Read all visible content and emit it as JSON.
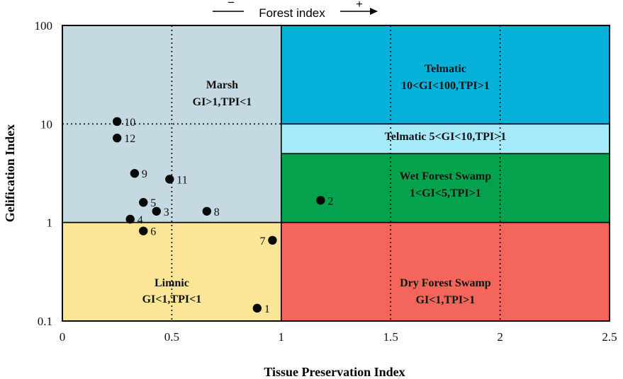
{
  "chart_data": {
    "type": "scatter",
    "title": "",
    "top_label": "Forest index",
    "top_minus": "−",
    "top_plus": "+",
    "xlabel": "Tissue Preservation Index",
    "ylabel": "Gelification Index",
    "xlim": [
      0,
      2.5
    ],
    "ylim": [
      0.1,
      100
    ],
    "y_scale": "log",
    "x_ticks": [
      "0",
      "0.5",
      "1",
      "1.5",
      "2",
      "2.5"
    ],
    "x_tick_values": [
      0,
      0.5,
      1,
      1.5,
      2,
      2.5
    ],
    "y_ticks": [
      "0.1",
      "1",
      "10",
      "100"
    ],
    "y_tick_values": [
      0.1,
      1,
      10,
      100
    ],
    "guide_lines": {
      "vertical_dotted_x": [
        0.5,
        1.5,
        2.0
      ],
      "horizontal_dotted_y": 10
    },
    "regions": [
      {
        "name": "marsh",
        "label_line1": "Marsh",
        "label_line2": "GI>1,TPI<1",
        "x_range": [
          0,
          1
        ],
        "y_range": [
          1,
          100
        ],
        "color": "#c5d9e3"
      },
      {
        "name": "limnic",
        "label_line1": "Limnic",
        "label_line2": "GI<1,TPI<1",
        "x_range": [
          0,
          1
        ],
        "y_range": [
          0.1,
          1
        ],
        "color": "#fbe596"
      },
      {
        "name": "telmatic-high",
        "label_line1": "Telmatic",
        "label_line2": "10<GI<100,TPI>1",
        "x_range": [
          1,
          2.5
        ],
        "y_range": [
          10,
          100
        ],
        "color": "#05b1d9"
      },
      {
        "name": "telmatic-low",
        "label_line1": "Telmatic  5<GI<10,TPI>1",
        "label_line2": "",
        "x_range": [
          1,
          2.5
        ],
        "y_range": [
          5,
          10
        ],
        "color": "#a6eaf9"
      },
      {
        "name": "wet-forest-swamp",
        "label_line1": "Wet Forest Swamp",
        "label_line2": "1<GI<5,TPI>1",
        "x_range": [
          1,
          2.5
        ],
        "y_range": [
          1,
          5
        ],
        "color": "#05a24d"
      },
      {
        "name": "dry-forest-swamp",
        "label_line1": "Dry Forest Swamp",
        "label_line2": "GI<1,TPI>1",
        "x_range": [
          1,
          2.5
        ],
        "y_range": [
          0.1,
          1
        ],
        "color": "#f4665c"
      }
    ],
    "points": [
      {
        "label": "1",
        "x": 0.89,
        "y": 0.135,
        "label_pos": "right"
      },
      {
        "label": "2",
        "x": 1.18,
        "y": 1.68,
        "label_pos": "right"
      },
      {
        "label": "3",
        "x": 0.43,
        "y": 1.3,
        "label_pos": "right"
      },
      {
        "label": "4",
        "x": 0.31,
        "y": 1.08,
        "label_pos": "right"
      },
      {
        "label": "5",
        "x": 0.37,
        "y": 1.6,
        "label_pos": "right"
      },
      {
        "label": "6",
        "x": 0.37,
        "y": 0.82,
        "label_pos": "right"
      },
      {
        "label": "7",
        "x": 0.96,
        "y": 0.66,
        "label_pos": "left"
      },
      {
        "label": "8",
        "x": 0.66,
        "y": 1.3,
        "label_pos": "right"
      },
      {
        "label": "9",
        "x": 0.33,
        "y": 3.15,
        "label_pos": "right"
      },
      {
        "label": "10",
        "x": 0.25,
        "y": 10.6,
        "label_pos": "right"
      },
      {
        "label": "11",
        "x": 0.49,
        "y": 2.75,
        "label_pos": "right"
      },
      {
        "label": "12",
        "x": 0.25,
        "y": 7.2,
        "label_pos": "right"
      }
    ],
    "grid": false,
    "legend": "none"
  }
}
